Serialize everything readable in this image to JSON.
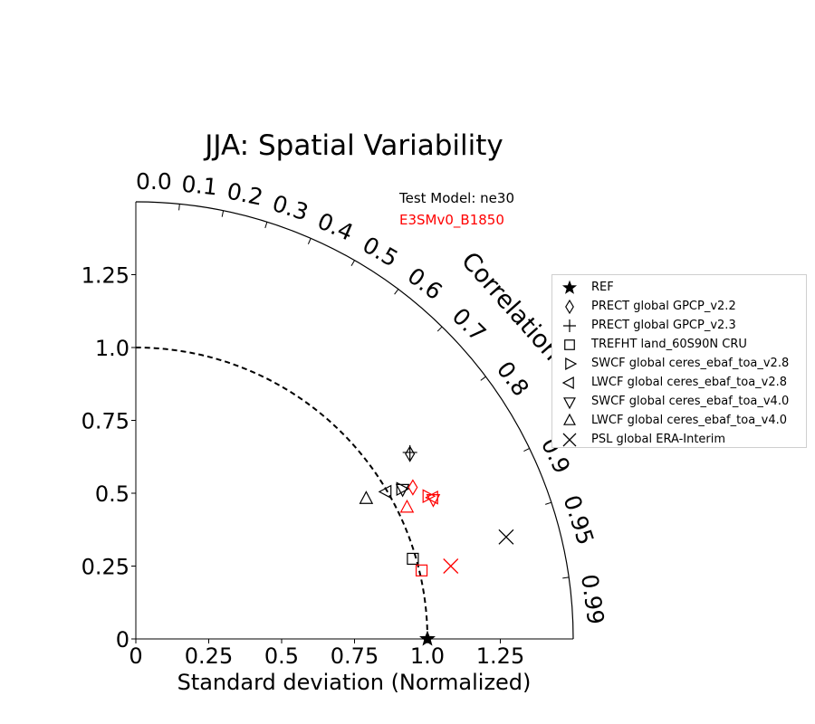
{
  "chart_data": {
    "type": "scatter",
    "subtype": "taylor-diagram",
    "title": "JJA: Spatial Variability",
    "xlabel": "Standard deviation (Normalized)",
    "ylabel": "",
    "xlim": [
      0,
      1.5
    ],
    "ylim": [
      0,
      1.5
    ],
    "x_ticks": [
      "0",
      "0.25",
      "0.5",
      "0.75",
      "1.0",
      "1.25"
    ],
    "y_ticks": [
      "0",
      "0.25",
      "0.5",
      "0.75",
      "1.0",
      "1.25"
    ],
    "correlation_label": "Correlation",
    "correlation_ticks": [
      "0.0",
      "0.1",
      "0.2",
      "0.3",
      "0.4",
      "0.5",
      "0.6",
      "0.7",
      "0.8",
      "0.9",
      "0.95",
      "0.99"
    ],
    "reference_std": 1.0,
    "test_model_label": "Test Model: ne30",
    "test_model_name": "E3SMv0_B1850",
    "colors": {
      "test_model": "#000000",
      "other_model": "#ff0000"
    },
    "legend_placement": "right",
    "series": [
      {
        "name": "REF",
        "marker": "star",
        "points": [
          {
            "x": 1.0,
            "y": 0.0,
            "color": "#000000"
          }
        ]
      },
      {
        "name": "PRECT global GPCP_v2.2",
        "marker": "diamond",
        "points": [
          {
            "x": 0.94,
            "y": 0.635,
            "color": "#000000"
          },
          {
            "x": 0.95,
            "y": 0.52,
            "color": "#ff0000"
          }
        ]
      },
      {
        "name": "PRECT global GPCP_v2.3",
        "marker": "plus",
        "points": [
          {
            "x": 0.94,
            "y": 0.64,
            "color": "#000000"
          }
        ]
      },
      {
        "name": "TREFHT land_60S90N CRU",
        "marker": "square",
        "points": [
          {
            "x": 0.95,
            "y": 0.275,
            "color": "#000000"
          },
          {
            "x": 0.98,
            "y": 0.235,
            "color": "#ff0000"
          }
        ]
      },
      {
        "name": "SWCF global ceres_ebaf_toa_v2.8",
        "marker": "triangle-right",
        "points": [
          {
            "x": 0.91,
            "y": 0.515,
            "color": "#000000"
          },
          {
            "x": 1.0,
            "y": 0.49,
            "color": "#ff0000"
          }
        ]
      },
      {
        "name": "LWCF global ceres_ebaf_toa_v2.8",
        "marker": "triangle-left",
        "points": [
          {
            "x": 0.86,
            "y": 0.505,
            "color": "#000000"
          },
          {
            "x": 1.02,
            "y": 0.485,
            "color": "#ff0000"
          }
        ]
      },
      {
        "name": "SWCF global ceres_ebaf_toa_v4.0",
        "marker": "triangle-down",
        "points": [
          {
            "x": 0.915,
            "y": 0.515,
            "color": "#000000"
          },
          {
            "x": 1.02,
            "y": 0.48,
            "color": "#ff0000"
          }
        ]
      },
      {
        "name": "LWCF global ceres_ebaf_toa_v4.0",
        "marker": "triangle-up",
        "points": [
          {
            "x": 0.79,
            "y": 0.48,
            "color": "#000000"
          },
          {
            "x": 0.93,
            "y": 0.45,
            "color": "#ff0000"
          }
        ]
      },
      {
        "name": "PSL global ERA-Interim",
        "marker": "x",
        "points": [
          {
            "x": 1.27,
            "y": 0.35,
            "color": "#000000"
          },
          {
            "x": 1.08,
            "y": 0.25,
            "color": "#ff0000"
          }
        ]
      }
    ]
  }
}
